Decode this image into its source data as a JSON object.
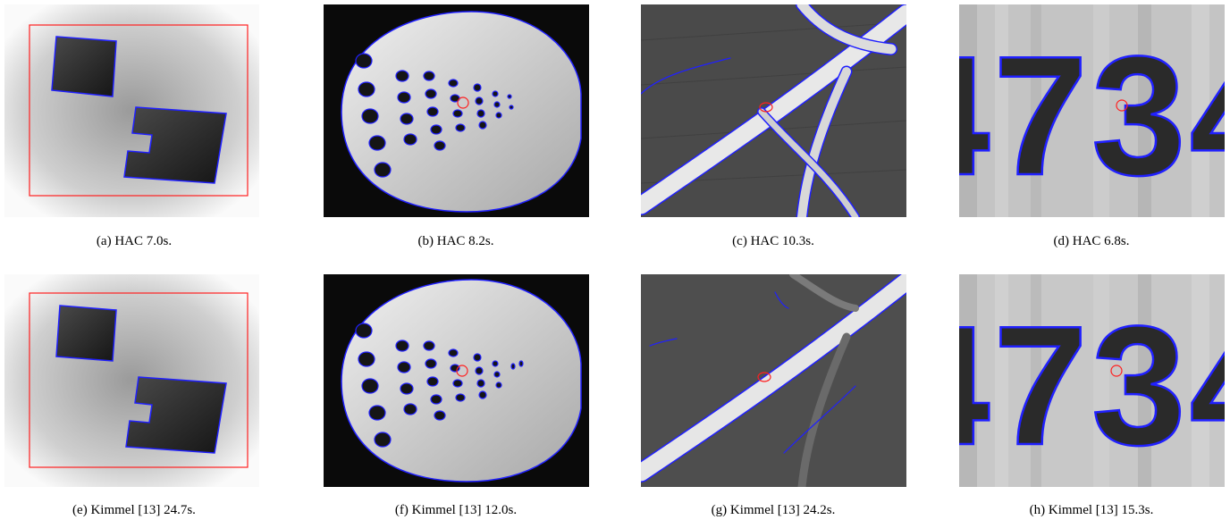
{
  "figure": {
    "panels": [
      {
        "id": "a",
        "caption": "(a)  HAC 7.0s."
      },
      {
        "id": "b",
        "caption": "(b)  HAC 8.2s."
      },
      {
        "id": "c",
        "caption": "(c)  HAC 10.3s."
      },
      {
        "id": "d",
        "caption": "(d)  HAC 6.8s."
      },
      {
        "id": "e",
        "caption": "(e)  Kimmel [13] 24.7s."
      },
      {
        "id": "f",
        "caption": "(f)  Kimmel [13] 12.0s."
      },
      {
        "id": "g",
        "caption": "(g)  Kimmel [13] 24.2s."
      },
      {
        "id": "h",
        "caption": "(h)  Kimmel [13] 15.3s."
      }
    ],
    "digits_text": "4734",
    "colors": {
      "contour": "#2020ff",
      "initial_contour": "#ff2020"
    }
  }
}
